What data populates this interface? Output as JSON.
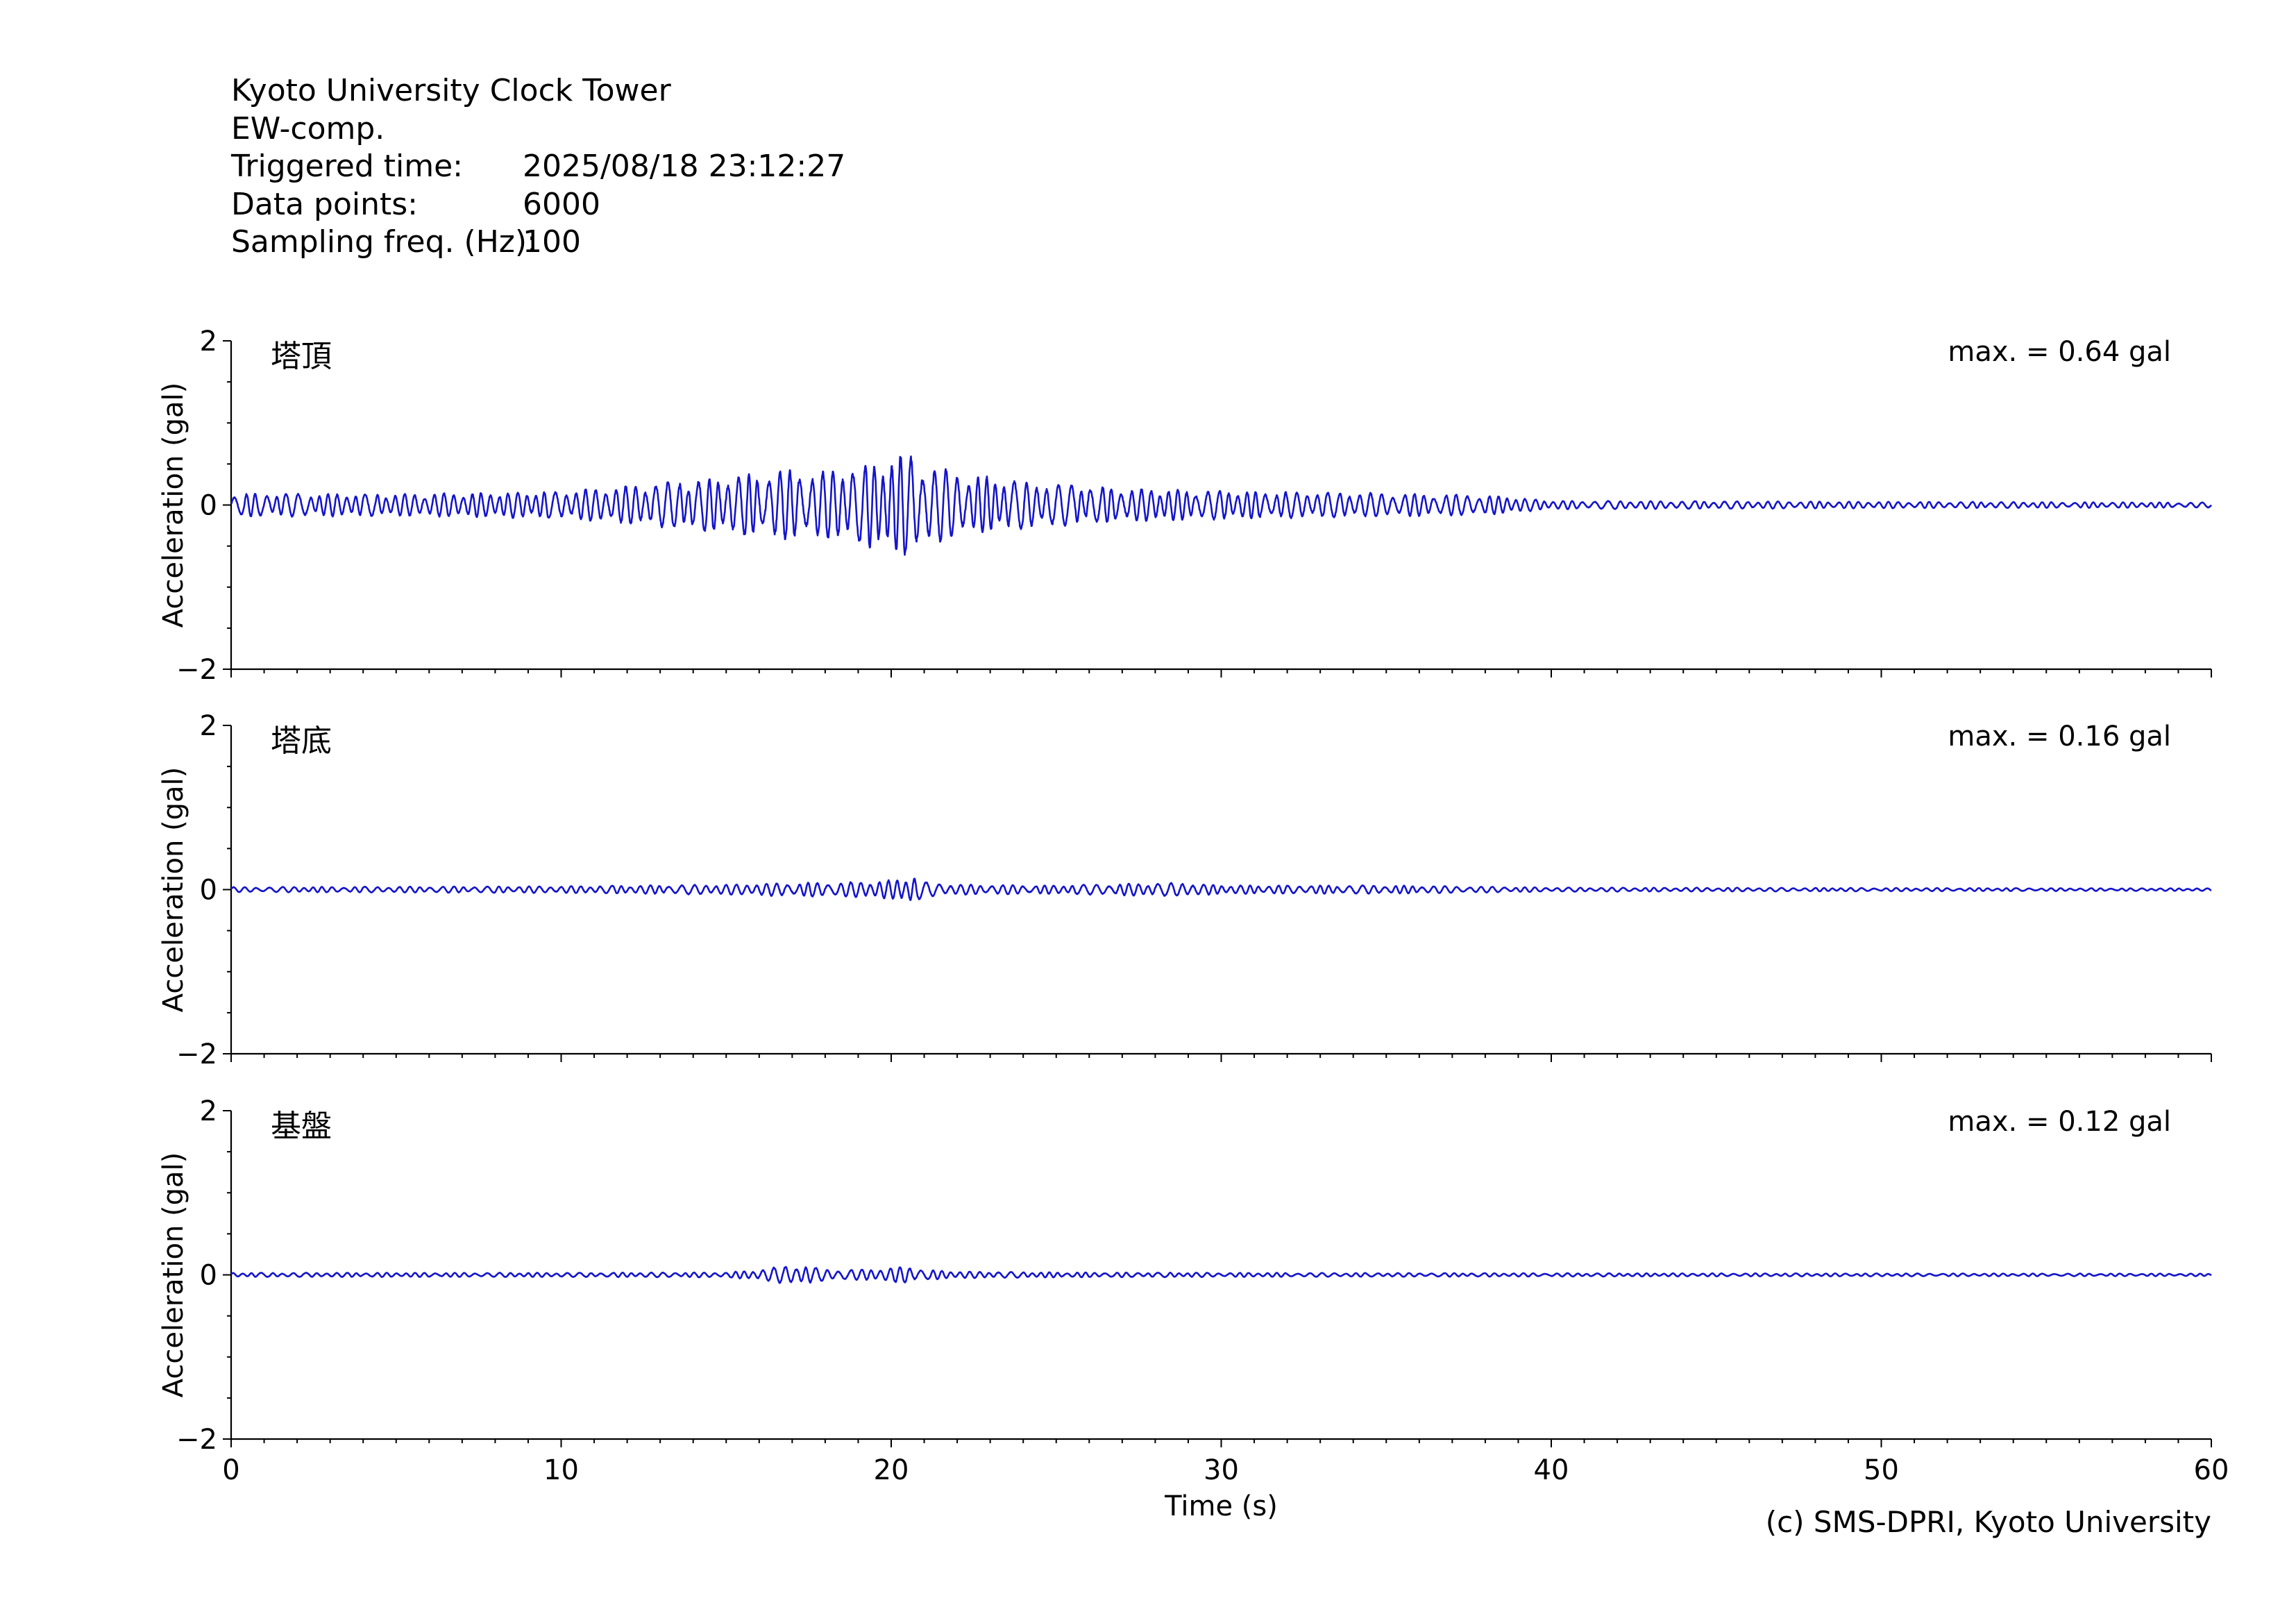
{
  "header": {
    "station": "Kyoto University Clock Tower",
    "component": "EW-comp.",
    "rows": [
      {
        "label": "Triggered time:",
        "value": "2025/08/18 23:12:27"
      },
      {
        "label": "Data points:",
        "value": "6000"
      },
      {
        "label": "Sampling freq. (Hz):",
        "value": "100"
      }
    ]
  },
  "chart_data": [
    {
      "type": "line",
      "panel_label": "塔頂",
      "annotation": "max. = 0.64 gal",
      "peak": 0.64,
      "ylabel": "Acceleration (gal)",
      "xlabel": "",
      "xlim": [
        0,
        60
      ],
      "ylim": [
        -2,
        2
      ],
      "yticks": [
        -2,
        0,
        2
      ],
      "ytick_labels": [
        "−2",
        "0",
        "2"
      ],
      "xtick_labels": [],
      "color": "#1414cc",
      "envelope": {
        "t": [
          0,
          5,
          10,
          14,
          16,
          17,
          18,
          19,
          20,
          20.6,
          21,
          22,
          24,
          27,
          30,
          35,
          38,
          40,
          50,
          60
        ],
        "a": [
          0.14,
          0.13,
          0.16,
          0.3,
          0.38,
          0.42,
          0.4,
          0.48,
          0.55,
          0.64,
          0.5,
          0.38,
          0.28,
          0.2,
          0.17,
          0.14,
          0.12,
          0.05,
          0.04,
          0.03
        ]
      }
    },
    {
      "type": "line",
      "panel_label": "塔底",
      "annotation": "max. = 0.16 gal",
      "peak": 0.16,
      "ylabel": "Acceleration (gal)",
      "xlabel": "",
      "xlim": [
        0,
        60
      ],
      "ylim": [
        -2,
        2
      ],
      "yticks": [
        -2,
        0,
        2
      ],
      "ytick_labels": [
        "−2",
        "0",
        "2"
      ],
      "xtick_labels": [],
      "color": "#1414cc",
      "envelope": {
        "t": [
          0,
          5,
          10,
          15,
          17,
          19,
          20,
          20.6,
          21,
          22,
          25,
          27,
          29,
          30,
          35,
          40,
          50,
          60
        ],
        "a": [
          0.03,
          0.035,
          0.04,
          0.06,
          0.08,
          0.09,
          0.11,
          0.16,
          0.09,
          0.06,
          0.05,
          0.07,
          0.08,
          0.05,
          0.05,
          0.025,
          0.02,
          0.015
        ]
      }
    },
    {
      "type": "line",
      "panel_label": "基盤",
      "annotation": "max. = 0.12 gal",
      "peak": 0.12,
      "ylabel": "Acceleration (gal)",
      "xlabel": "Time (s)",
      "xlim": [
        0,
        60
      ],
      "ylim": [
        -2,
        2
      ],
      "yticks": [
        -2,
        0,
        2
      ],
      "ytick_labels": [
        "−2",
        "0",
        "2"
      ],
      "xtick_labels": [
        "0",
        "10",
        "20",
        "30",
        "40",
        "50",
        "60"
      ],
      "color": "#1414cc",
      "envelope": {
        "t": [
          0,
          10,
          15,
          16,
          17,
          18,
          19,
          20,
          20.5,
          21,
          22,
          25,
          30,
          40,
          60
        ],
        "a": [
          0.025,
          0.025,
          0.03,
          0.06,
          0.12,
          0.07,
          0.06,
          0.08,
          0.11,
          0.06,
          0.04,
          0.03,
          0.025,
          0.02,
          0.015
        ]
      }
    }
  ],
  "copyright": "(c) SMS-DPRI, Kyoto University"
}
